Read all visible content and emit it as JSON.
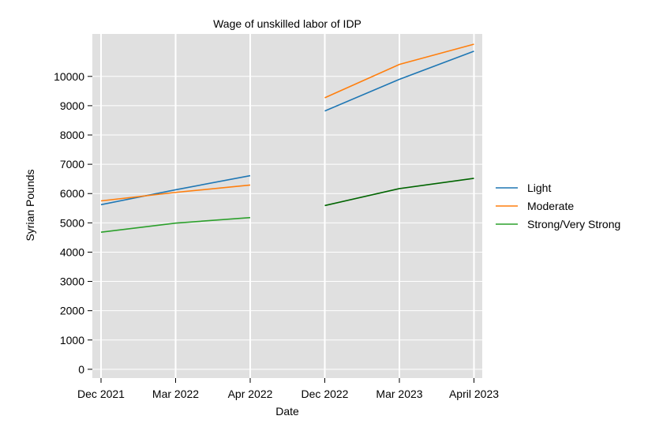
{
  "chart_data": {
    "type": "line",
    "title": "Wage of unskilled labor of IDP",
    "xlabel": "Date",
    "ylabel": "Syrian Pounds",
    "categories": [
      "Dec 2021",
      "Mar 2022",
      "Apr 2022",
      "Dec 2022",
      "Mar 2023",
      "April 2023"
    ],
    "ylim": [
      -300,
      11450
    ],
    "yticks": [
      0,
      1000,
      2000,
      3000,
      4000,
      5000,
      6000,
      7000,
      8000,
      9000,
      10000
    ],
    "grid": true,
    "legend_position": "right",
    "series": [
      {
        "name": "Light",
        "color": "#1f77b4",
        "segments": [
          {
            "categories": [
              "Dec 2021",
              "Mar 2022",
              "Apr 2022"
            ],
            "values": [
              5620,
              6130,
              6610
            ]
          },
          {
            "categories": [
              "Dec 2022",
              "Mar 2023",
              "April 2023"
            ],
            "values": [
              8820,
              9900,
              10860
            ]
          }
        ]
      },
      {
        "name": "Moderate",
        "color": "#ff7f0e",
        "segments": [
          {
            "categories": [
              "Dec 2021",
              "Mar 2022",
              "Apr 2022"
            ],
            "values": [
              5750,
              6040,
              6290
            ]
          },
          {
            "categories": [
              "Dec 2022",
              "Mar 2023",
              "April 2023"
            ],
            "values": [
              9270,
              10410,
              11100
            ]
          }
        ]
      },
      {
        "name": "Strong/Very Strong",
        "color": "#2ca02c",
        "segments": [
          {
            "categories": [
              "Dec 2021",
              "Mar 2022",
              "Apr 2022"
            ],
            "values": [
              4680,
              4990,
              5180
            ],
            "color": "#2ca02c"
          },
          {
            "categories": [
              "Dec 2022",
              "Mar 2023",
              "April 2023"
            ],
            "values": [
              5590,
              6170,
              6520
            ],
            "color": "#006400"
          }
        ]
      }
    ]
  }
}
